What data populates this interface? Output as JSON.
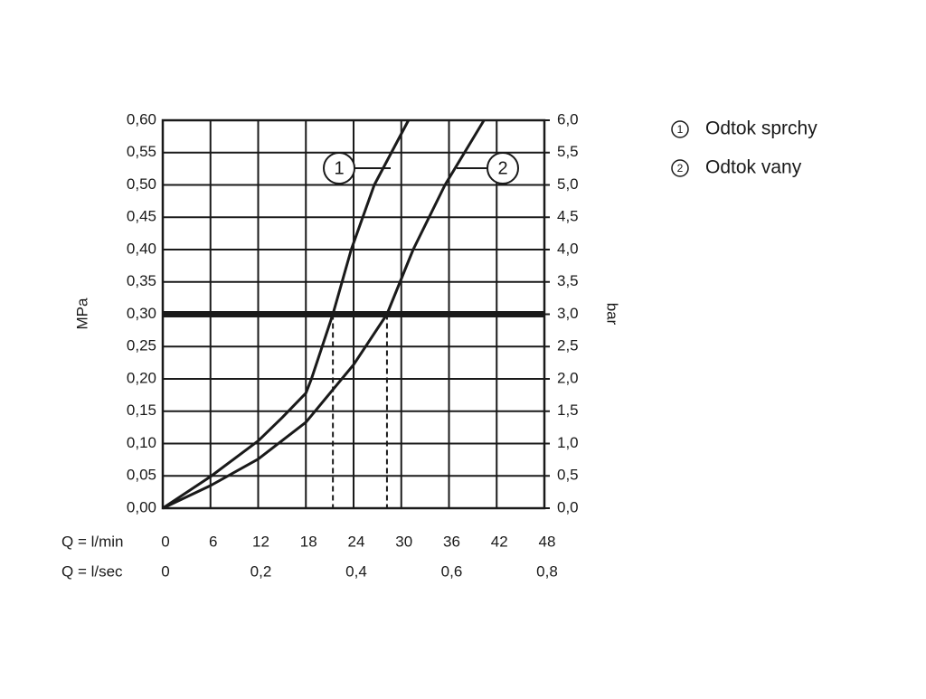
{
  "chart_data": {
    "type": "line",
    "y_label": "MPa",
    "y2_label": "bar",
    "x_label": "Q = l/min",
    "x2_label": "Q = l/sec",
    "xlim": [
      0,
      48
    ],
    "xticks": [
      0,
      6,
      12,
      18,
      24,
      30,
      36,
      42,
      48
    ],
    "x2lim": [
      0,
      0.8
    ],
    "x2ticks": [
      0,
      {
        "value": 0.2,
        "label": "0,2"
      },
      {
        "value": 0.4,
        "label": "0,4"
      },
      {
        "value": 0.6,
        "label": "0,6"
      },
      {
        "value": 0.8,
        "label": "0,8"
      }
    ],
    "ylim": [
      0,
      0.6
    ],
    "yticks": [
      {
        "value": 0,
        "label": "0,00"
      },
      {
        "value": 0.05,
        "label": "0,05"
      },
      {
        "value": 0.1,
        "label": "0,10"
      },
      {
        "value": 0.15,
        "label": "0,15"
      },
      {
        "value": 0.2,
        "label": "0,20"
      },
      {
        "value": 0.25,
        "label": "0,25"
      },
      {
        "value": 0.3,
        "label": "0,30"
      },
      {
        "value": 0.35,
        "label": "0,35"
      },
      {
        "value": 0.4,
        "label": "0,40"
      },
      {
        "value": 0.45,
        "label": "0,45"
      },
      {
        "value": 0.5,
        "label": "0,50"
      },
      {
        "value": 0.55,
        "label": "0,55"
      },
      {
        "value": 0.6,
        "label": "0,60"
      }
    ],
    "y2lim": [
      0,
      6
    ],
    "y2ticks": [
      {
        "value": 0,
        "label": "0,0"
      },
      {
        "value": 0.5,
        "label": "0,5"
      },
      {
        "value": 1,
        "label": "1,0"
      },
      {
        "value": 1.5,
        "label": "1,5"
      },
      {
        "value": 2,
        "label": "2,0"
      },
      {
        "value": 2.5,
        "label": "2,5"
      },
      {
        "value": 3,
        "label": "3,0"
      },
      {
        "value": 3.5,
        "label": "3,5"
      },
      {
        "value": 4,
        "label": "4,0"
      },
      {
        "value": 4.5,
        "label": "4,5"
      },
      {
        "value": 5,
        "label": "5,0"
      },
      {
        "value": 5.5,
        "label": "5,5"
      },
      {
        "value": 6,
        "label": "6,0"
      }
    ],
    "grid": true,
    "reference_line": 0.3,
    "series": [
      {
        "name": "Odtok sprchy",
        "label": "1",
        "color": "#1a1a1a",
        "operating_x": 21.4,
        "x": [
          0,
          6,
          12,
          15,
          18,
          18.7,
          21.4,
          23.7,
          26.6,
          30.9
        ],
        "values": [
          0,
          0.049,
          0.104,
          0.14,
          0.178,
          0.2,
          0.3,
          0.4,
          0.5,
          0.6
        ]
      },
      {
        "name": "Odtok vany",
        "label": "2",
        "color": "#1a1a1a",
        "operating_x": 28.2,
        "x": [
          0,
          6,
          12,
          18,
          24,
          28.2,
          31.5,
          35.5,
          40.4
        ],
        "values": [
          0,
          0.035,
          0.076,
          0.133,
          0.222,
          0.3,
          0.4,
          0.5,
          0.6
        ]
      }
    ]
  }
}
